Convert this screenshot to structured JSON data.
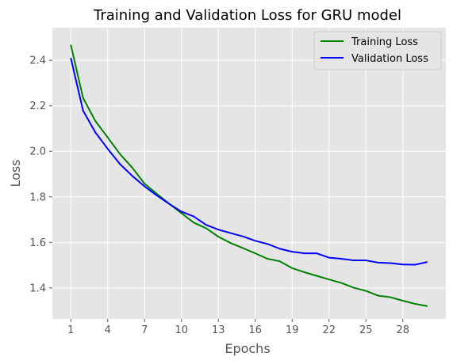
{
  "chart_data": {
    "type": "line",
    "title": "Training and Validation Loss for GRU model",
    "xlabel": "Epochs",
    "ylabel": "Loss",
    "xlim": [
      -0.5,
      31.5
    ],
    "ylim": [
      1.264,
      2.543
    ],
    "x_ticks": [
      1,
      4,
      7,
      10,
      13,
      16,
      19,
      22,
      25,
      28
    ],
    "y_ticks": [
      1.4,
      1.6,
      1.8,
      2.0,
      2.2,
      2.4
    ],
    "y_tick_labels": [
      "1.4",
      "1.6",
      "1.8",
      "2.0",
      "2.2",
      "2.4"
    ],
    "grid": true,
    "legend_position": "top-right",
    "x": [
      1,
      2,
      3,
      4,
      5,
      6,
      7,
      8,
      9,
      10,
      11,
      12,
      13,
      14,
      15,
      16,
      17,
      18,
      19,
      20,
      21,
      22,
      23,
      24,
      25,
      26,
      27,
      28,
      29,
      30
    ],
    "series": [
      {
        "name": "Training Loss",
        "color": "#008000",
        "values": [
          2.468,
          2.234,
          2.133,
          2.061,
          1.988,
          1.928,
          1.858,
          1.813,
          1.77,
          1.728,
          1.687,
          1.662,
          1.625,
          1.597,
          1.575,
          1.552,
          1.528,
          1.517,
          1.487,
          1.469,
          1.453,
          1.437,
          1.422,
          1.401,
          1.387,
          1.366,
          1.359,
          1.344,
          1.33,
          1.32
        ]
      },
      {
        "name": "Validation Loss",
        "color": "#0000ff",
        "values": [
          2.41,
          2.178,
          2.083,
          2.011,
          1.944,
          1.892,
          1.846,
          1.806,
          1.769,
          1.735,
          1.714,
          1.677,
          1.656,
          1.641,
          1.626,
          1.607,
          1.593,
          1.572,
          1.559,
          1.552,
          1.552,
          1.533,
          1.528,
          1.521,
          1.521,
          1.511,
          1.509,
          1.503,
          1.502,
          1.514
        ]
      }
    ]
  }
}
